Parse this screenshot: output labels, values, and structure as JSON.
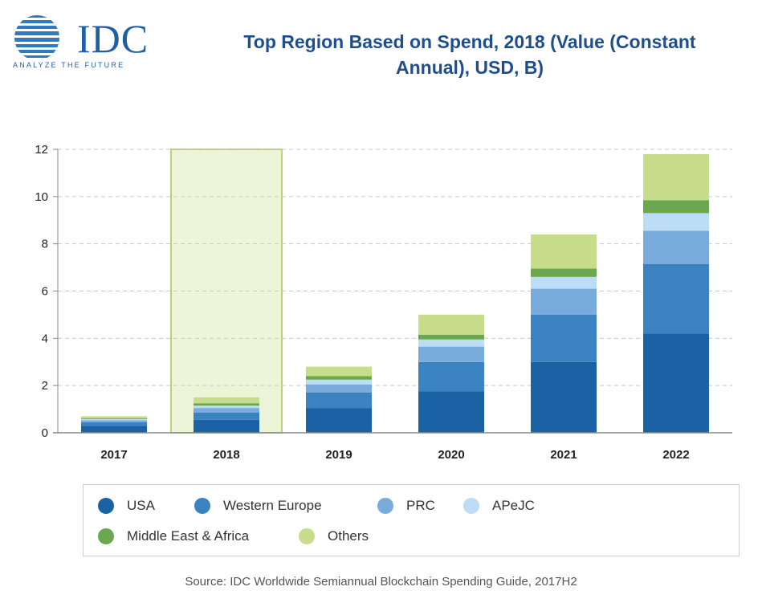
{
  "logo": {
    "name": "IDC",
    "tagline": "ANALYZE THE FUTURE"
  },
  "title_line1": "Top Region Based on Spend, 2018 (Value (Constant",
  "title_line2": "Annual), USD, B)",
  "source": "Source: IDC Worldwide Semiannual Blockchain Spending Guide, 2017H2",
  "colors": {
    "USA": "#1b62a5",
    "Western Europe": "#3b82c0",
    "PRC": "#79acdc",
    "APeJC": "#bddcf6",
    "Middle East & Africa": "#6aa84f",
    "Others": "#c7dd8b",
    "highlight_fill": "#eef4d8",
    "highlight_border": "#b7d27a"
  },
  "chart_data": {
    "type": "bar",
    "stacked": true,
    "categories": [
      "2017",
      "2018",
      "2019",
      "2020",
      "2021",
      "2022"
    ],
    "highlight_category": "2018",
    "ylim": [
      0,
      12
    ],
    "yticks": [
      "0",
      "2",
      "4",
      "6",
      "8",
      "10",
      "12"
    ],
    "grid": true,
    "legend_position": "bottom",
    "series": [
      {
        "name": "USA",
        "values": [
          0.3,
          0.55,
          1.05,
          1.75,
          3.0,
          4.2
        ]
      },
      {
        "name": "Western Europe",
        "values": [
          0.15,
          0.3,
          0.65,
          1.25,
          2.0,
          2.95
        ]
      },
      {
        "name": "PRC",
        "values": [
          0.08,
          0.2,
          0.35,
          0.65,
          1.1,
          1.4
        ]
      },
      {
        "name": "APeJC",
        "values": [
          0.05,
          0.1,
          0.2,
          0.3,
          0.5,
          0.75
        ]
      },
      {
        "name": "Middle East & Africa",
        "values": [
          0.03,
          0.1,
          0.15,
          0.2,
          0.35,
          0.55
        ]
      },
      {
        "name": "Others",
        "values": [
          0.09,
          0.25,
          0.4,
          0.85,
          1.45,
          1.95
        ]
      }
    ]
  }
}
